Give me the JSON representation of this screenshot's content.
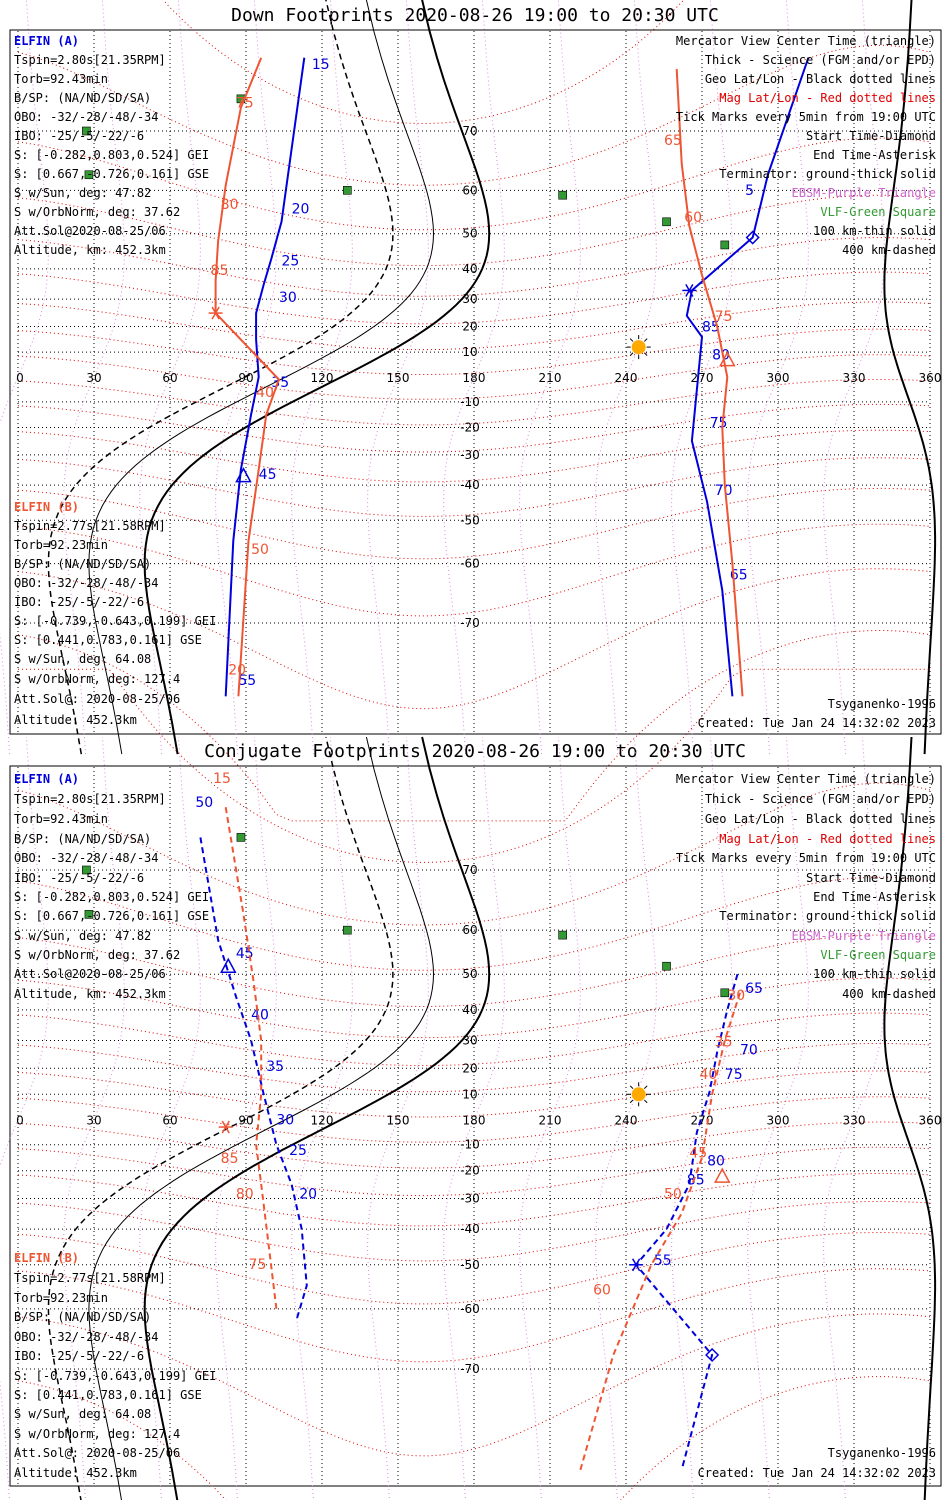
{
  "colors": {
    "elfin_a": "#0000dd",
    "elfin_b": "#ee5533",
    "mag_grid": "#dd0000",
    "geo_grid": "#000000",
    "ebsm": "#cc66cc",
    "vlf": "#339933",
    "sun": "#ffaa00",
    "coast": "#b0b0b0"
  },
  "panels": [
    {
      "title": "Down Footprints 2020-08-26 19:00 to 20:30 UTC",
      "elfin_a": [
        "ELFIN (A)",
        "Tspin=2.80s[21.35RPM]",
        "Torb=92.43min",
        "B/SP: (NA/ND/SD/SA)",
        "OBO: -32/-28/-48/-34",
        "IBO: -25/-5/-22/-6",
        "S: [-0.282,0.803,0.524] GEI",
        "S: [0.667,-0.726,0.161] GSE",
        "S w/Sun, deg: 47.82",
        "S w/OrbNorm, deg: 37.62",
        "Att.Sol@2020-08-25/06",
        "Altitude, km: 452.3km"
      ],
      "elfin_b": [
        "ELFIN (B)",
        "Tspin=2.77s[21.58RPM]",
        "Torb=92.23min",
        "B/SP: (NA/ND/SD/SA)",
        "OBO: -32/-28/-48/-34",
        "IBO: -25/-5/-22/-6",
        "S: [-0.739,-0.643,0.199] GEI",
        "S: [0.441,0.783,0.161] GSE",
        "S w/Sun, deg: 64.08",
        "S w/OrbNorm, deg: 127.4",
        "Att.Sol@: 2020-08-25/06",
        "Altitude: 452.3km"
      ],
      "legend": [
        {
          "text": "Mercator View Center Time (triangle)",
          "color": "#000000"
        },
        {
          "text": "Thick - Science (FGM and/or EPD)",
          "color": "#000000"
        },
        {
          "text": "Geo Lat/Lon - Black dotted lines",
          "color": "#000000"
        },
        {
          "text": "Mag Lat/Lon - Red dotted lines",
          "color": "#dd0000"
        },
        {
          "text": "Tick Marks every 5min from 19:00 UTC",
          "color": "#000000"
        },
        {
          "text": "Start Time-Diamond",
          "color": "#000000"
        },
        {
          "text": "End Time-Asterisk",
          "color": "#000000"
        },
        {
          "text": "Terminator: ground-thick solid",
          "color": "#000000"
        },
        {
          "text": "EBSM-Purple Triangle",
          "color": "#cc66cc"
        },
        {
          "text": "VLF-Green Square",
          "color": "#339933"
        },
        {
          "text": "100 km-thin solid",
          "color": "#000000"
        },
        {
          "text": "400 km-dashed",
          "color": "#000000"
        }
      ],
      "model": "Tsyganenko-1996",
      "created": "Created: Tue Jan 24 14:32:02 2023"
    },
    {
      "title": "Conjugate Footprints 2020-08-26 19:00 to 20:30 UTC",
      "elfin_a": [
        "ELFIN (A)",
        "Tspin=2.80s[21.35RPM]",
        "Torb=92.43min",
        "B/SP: (NA/ND/SD/SA)",
        "OBO: -32/-28/-48/-34",
        "IBO: -25/-5/-22/-6",
        "S: [-0.282,0.803,0.524] GEI",
        "S: [0.667,-0.726,0.161] GSE",
        "S w/Sun, deg: 47.82",
        "S w/OrbNorm, deg: 37.62",
        "Att.Sol@2020-08-25/06",
        "Altitude, km: 452.3km"
      ],
      "elfin_b": [
        "ELFIN (B)",
        "Tspin=2.77s[21.58RPM]",
        "Torb=92.23min",
        "B/SP: (NA/ND/SD/SA)",
        "OBO: -32/-28/-48/-34",
        "IBO: -25/-5/-22/-6",
        "S: [-0.739,-0.643,0.199] GEI",
        "S: [0.441,0.783,0.161] GSE",
        "S w/Sun, deg: 64.08",
        "S w/OrbNorm, deg: 127.4",
        "Att.Sol@: 2020-08-25/06",
        "Altitude: 452.3km"
      ],
      "legend": [
        {
          "text": "Mercator View Center Time (triangle)",
          "color": "#000000"
        },
        {
          "text": "Thick - Science (FGM and/or EPD)",
          "color": "#000000"
        },
        {
          "text": "Geo Lat/Lon - Black dotted lines",
          "color": "#000000"
        },
        {
          "text": "Mag Lat/Lon - Red dotted lines",
          "color": "#dd0000"
        },
        {
          "text": "Tick Marks every 5min from 19:00 UTC",
          "color": "#000000"
        },
        {
          "text": "Start Time-Diamond",
          "color": "#000000"
        },
        {
          "text": "End Time-Asterisk",
          "color": "#000000"
        },
        {
          "text": "Terminator: ground-thick solid",
          "color": "#000000"
        },
        {
          "text": "EBSM-Purple Triangle",
          "color": "#cc66cc"
        },
        {
          "text": "VLF-Green Square",
          "color": "#339933"
        },
        {
          "text": "100 km-thin solid",
          "color": "#000000"
        },
        {
          "text": "400 km-dashed",
          "color": "#000000"
        }
      ],
      "model": "Tsyganenko-1996",
      "created": "Created: Tue Jan 24 14:32:02 2023"
    }
  ],
  "chart_data": [
    {
      "type": "scatter",
      "title": "Down Footprints 2020-08-26 19:00 to 20:30 UTC",
      "x_ticks": [
        0,
        30,
        60,
        90,
        120,
        150,
        180,
        210,
        240,
        270,
        300,
        330,
        360
      ],
      "y_ticks": [
        70,
        60,
        50,
        40,
        30,
        20,
        10,
        -10,
        -20,
        -30,
        -40,
        -50,
        -60,
        -70
      ],
      "xlim": [
        0,
        360
      ],
      "ylim": [
        -80,
        80
      ],
      "grid": true,
      "sun": [
        245,
        12
      ],
      "vlf": [
        [
          88,
          74
        ],
        [
          27,
          70
        ],
        [
          28,
          63
        ],
        [
          130,
          60
        ],
        [
          215,
          59
        ],
        [
          256,
          53
        ],
        [
          279,
          47
        ]
      ],
      "series": [
        {
          "name": "ELFIN (A)",
          "line": "solid",
          "points": [
            [
              312,
              78
            ],
            [
              296,
              63
            ],
            [
              290,
              49
            ],
            [
              266,
              33
            ],
            [
              264,
              24
            ],
            [
              270,
              16
            ],
            [
              268,
              -5
            ],
            [
              266,
              -25
            ],
            [
              272,
              -45
            ],
            [
              278,
              -65
            ],
            [
              282,
              -78
            ],
            [
              113,
              78
            ],
            [
              109,
              70
            ],
            [
              104,
              53
            ],
            [
              100,
              43
            ],
            [
              97,
              35
            ],
            [
              94,
              25
            ],
            [
              94,
              15
            ],
            [
              95,
              0
            ],
            [
              92,
              -15
            ],
            [
              88,
              -35
            ],
            [
              85,
              -55
            ],
            [
              82,
              -78
            ]
          ],
          "labels": [
            {
              "text": "15",
              "at": [
                116,
                77
              ]
            },
            {
              "text": "20",
              "at": [
                108,
                55
              ]
            },
            {
              "text": "25",
              "at": [
                104,
                41
              ]
            },
            {
              "text": "30",
              "at": [
                103,
                29
              ]
            },
            {
              "text": "35",
              "at": [
                100,
                -4
              ]
            },
            {
              "text": "45",
              "at": [
                95,
                -38
              ]
            },
            {
              "text": "55",
              "at": [
                87,
                -77
              ]
            },
            {
              "text": "5",
              "at": [
                287,
                59
              ]
            },
            {
              "text": "85",
              "at": [
                270,
                18
              ]
            },
            {
              "text": "80",
              "at": [
                274,
                7
              ]
            },
            {
              "text": "75",
              "at": [
                273,
                -20
              ]
            },
            {
              "text": "70",
              "at": [
                275,
                -43
              ]
            },
            {
              "text": "65",
              "at": [
                281,
                -63
              ]
            }
          ],
          "start": [
            290,
            49
          ],
          "end": [
            265,
            33
          ],
          "center": [
            89,
            -37
          ]
        },
        {
          "name": "ELFIN (B)",
          "line": "solid",
          "points": [
            [
              96,
              78
            ],
            [
              88,
              73
            ],
            [
              82,
              61
            ],
            [
              79,
              48
            ],
            [
              78,
              36
            ],
            [
              78,
              25
            ],
            [
              103,
              -1
            ],
            [
              98,
              -15
            ],
            [
              95,
              -35
            ],
            [
              91,
              -55
            ],
            [
              87,
              -78
            ],
            [
              260,
              77
            ],
            [
              262,
              65
            ],
            [
              265,
              52
            ],
            [
              270,
              38
            ],
            [
              276,
              20
            ],
            [
              280,
              0
            ],
            [
              278,
              -20
            ],
            [
              279,
              -40
            ],
            [
              282,
              -60
            ],
            [
              286,
              -78
            ]
          ],
          "labels": [
            {
              "text": "75",
              "at": [
                86,
                73
              ]
            },
            {
              "text": "80",
              "at": [
                80,
                56
              ]
            },
            {
              "text": "85",
              "at": [
                76,
                38
              ]
            },
            {
              "text": "40",
              "at": [
                94,
                -8
              ]
            },
            {
              "text": "50",
              "at": [
                92,
                -58
              ]
            },
            {
              "text": "20",
              "at": [
                83,
                -76
              ]
            },
            {
              "text": "65",
              "at": [
                255,
                68
              ]
            },
            {
              "text": "60",
              "at": [
                263,
                53
              ]
            },
            {
              "text": "75",
              "at": [
                275,
                22
              ]
            }
          ],
          "start": [
            null,
            null
          ],
          "end": [
            78,
            25
          ],
          "center": [
            280,
            7
          ]
        }
      ]
    },
    {
      "type": "scatter",
      "title": "Conjugate Footprints 2020-08-26 19:00 to 20:30 UTC",
      "x_ticks": [
        0,
        30,
        60,
        90,
        120,
        150,
        180,
        210,
        240,
        270,
        300,
        330,
        360
      ],
      "y_ticks": [
        70,
        60,
        50,
        40,
        30,
        20,
        10,
        -10,
        -20,
        -30,
        -40,
        -50,
        -60,
        -70
      ],
      "xlim": [
        0,
        360
      ],
      "ylim": [
        -80,
        80
      ],
      "grid": true,
      "sun": [
        245,
        10
      ],
      "vlf": [
        [
          88,
          74
        ],
        [
          27,
          70
        ],
        [
          28,
          63
        ],
        [
          130,
          60
        ],
        [
          215,
          59
        ],
        [
          256,
          52
        ],
        [
          279,
          45
        ]
      ],
      "series": [
        {
          "name": "ELFIN (A)",
          "line": "dashed",
          "points": [
            [
              72,
              74
            ],
            [
              79,
              58
            ],
            [
              86,
              44
            ],
            [
              92,
              30
            ],
            [
              97,
              10
            ],
            [
              102,
              -10
            ],
            [
              108,
              -25
            ],
            [
              112,
              -40
            ],
            [
              114,
              -55
            ],
            [
              110,
              -62
            ],
            [
              284,
              50
            ],
            [
              280,
              40
            ],
            [
              276,
              26
            ],
            [
              273,
              11
            ],
            [
              268,
              -5
            ],
            [
              265,
              -25
            ],
            [
              256,
              -40
            ],
            [
              244,
              -50
            ],
            [
              274,
              -68
            ],
            [
              262,
              -80
            ]
          ],
          "labels": [
            {
              "text": "50",
              "at": [
                70,
                77
              ]
            },
            {
              "text": "45",
              "at": [
                86,
                54
              ]
            },
            {
              "text": "40",
              "at": [
                92,
                37
              ]
            },
            {
              "text": "35",
              "at": [
                98,
                19
              ]
            },
            {
              "text": "30",
              "at": [
                102,
                -2
              ]
            },
            {
              "text": "25",
              "at": [
                107,
                -14
              ]
            },
            {
              "text": "20",
              "at": [
                111,
                -30
              ]
            },
            {
              "text": "65",
              "at": [
                287,
                45
              ]
            },
            {
              "text": "70",
              "at": [
                285,
                25
              ]
            },
            {
              "text": "75",
              "at": [
                279,
                16
              ]
            },
            {
              "text": "80",
              "at": [
                272,
                -18
              ]
            },
            {
              "text": "85",
              "at": [
                264,
                -25
              ]
            },
            {
              "text": "55",
              "at": [
                251,
                -50
              ]
            }
          ],
          "start": [
            274,
            -68
          ],
          "end": [
            244,
            -50
          ],
          "center": [
            83,
            52
          ]
        },
        {
          "name": "ELFIN (B)",
          "line": "dashed",
          "points": [
            [
              82,
              77
            ],
            [
              89,
              63
            ],
            [
              93,
              48
            ],
            [
              96,
              30
            ],
            [
              96,
              10
            ],
            [
              94,
              -10
            ],
            [
              96,
              -25
            ],
            [
              99,
              -45
            ],
            [
              102,
              -60
            ],
            [
              285,
              45
            ],
            [
              279,
              30
            ],
            [
              274,
              10
            ],
            [
              270,
              -15
            ],
            [
              262,
              -35
            ],
            [
              250,
              -50
            ],
            [
              235,
              -68
            ],
            [
              222,
              -80
            ]
          ],
          "labels": [
            {
              "text": "15",
              "at": [
                77,
                79
              ]
            },
            {
              "text": "85",
              "at": [
                80,
                -17
              ]
            },
            {
              "text": "80",
              "at": [
                86,
                -30
              ]
            },
            {
              "text": "75",
              "at": [
                91,
                -51
              ]
            },
            {
              "text": "30",
              "at": [
                280,
                43
              ]
            },
            {
              "text": "35",
              "at": [
                275,
                28
              ]
            },
            {
              "text": "40",
              "at": [
                269,
                16
              ]
            },
            {
              "text": "45",
              "at": [
                265,
                -15
              ]
            },
            {
              "text": "50",
              "at": [
                255,
                -30
              ]
            },
            {
              "text": "60",
              "at": [
                227,
                -57
              ]
            }
          ],
          "start": [
            null,
            null
          ],
          "end": [
            82,
            -3
          ],
          "center": [
            278,
            -22
          ]
        }
      ]
    }
  ]
}
